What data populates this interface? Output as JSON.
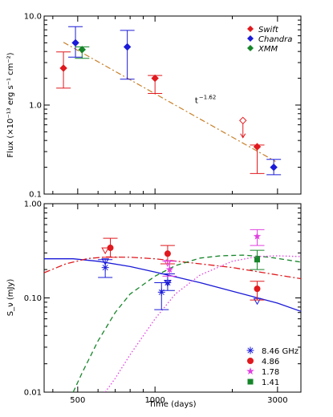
{
  "colors": {
    "swift": "#e0191e",
    "chandra": "#1a1ad8",
    "xmm": "#16852a",
    "fit": "#c8802a",
    "ghz846": "#1a1ad8",
    "ghz486": "#e0191e",
    "ghz178": "#e040e0",
    "ghz141": "#16852a"
  },
  "chart_data": [
    {
      "type": "scatter",
      "ylabel": "Flux (×10⁻¹³ erg s⁻¹ cm⁻²)",
      "xscale": "log",
      "yscale": "log",
      "xlim": [
        370,
        3700
      ],
      "ylim": [
        0.1,
        10
      ],
      "yticks": [
        {
          "v": 0.1,
          "label": "0.1"
        },
        {
          "v": 1,
          "label": "1.0"
        },
        {
          "v": 10,
          "label": "10.0"
        }
      ],
      "annotation": {
        "base": "t",
        "exp": "−1.62",
        "x": 1430,
        "y": 1.05
      },
      "fit": {
        "amp": 4.8,
        "ref": 455,
        "index": -1.62,
        "x_range": [
          440,
          2950
        ]
      },
      "series": [
        {
          "name": "Swift",
          "color_key": "swift",
          "marker": "diamond",
          "points": [
            {
              "x": 440,
              "y": 2.6,
              "ylo": 1.55,
              "yhi": 3.95
            },
            {
              "x": 1000,
              "y": 2.0,
              "ylo": 1.35,
              "yhi": 2.15
            },
            {
              "x": 2500,
              "y": 0.34,
              "ylo": 0.17,
              "yhi": 0.355
            }
          ],
          "upper_limits": [
            {
              "x": 2200,
              "y": 0.67,
              "to": 0.43
            }
          ]
        },
        {
          "name": "Chandra",
          "color_key": "chandra",
          "marker": "diamond",
          "points": [
            {
              "x": 490,
              "y": 5.0,
              "ylo": 3.45,
              "yhi": 7.6
            },
            {
              "x": 780,
              "y": 4.5,
              "ylo": 1.95,
              "yhi": 6.9
            },
            {
              "x": 2900,
              "y": 0.2,
              "ylo": 0.165,
              "yhi": 0.245
            }
          ]
        },
        {
          "name": "XMM",
          "color_key": "xmm",
          "marker": "diamond",
          "points": [
            {
              "x": 520,
              "y": 4.2,
              "ylo": 3.35,
              "yhi": 4.5
            }
          ]
        }
      ],
      "legend_position": "top-right"
    },
    {
      "type": "scatter",
      "ylabel": "S_ν (mJy)",
      "xlabel": "Time (days)",
      "xscale": "log",
      "yscale": "log",
      "xlim": [
        370,
        3700
      ],
      "ylim": [
        0.01,
        1.0
      ],
      "xticks": [
        {
          "v": 500,
          "label": "500"
        },
        {
          "v": 1000,
          "label": "1000"
        },
        {
          "v": 3000,
          "label": "3000"
        }
      ],
      "yticks": [
        {
          "v": 0.01,
          "label": "0.01"
        },
        {
          "v": 0.1,
          "label": "0.10"
        },
        {
          "v": 1,
          "label": "1.00"
        }
      ],
      "series": [
        {
          "name": "8.46 GHz",
          "color_key": "ghz846",
          "marker": "asterisk",
          "points": [
            {
              "x": 640,
              "y": 0.21,
              "ylo": 0.165,
              "yhi": 0.255
            },
            {
              "x": 1060,
              "y": 0.115,
              "ylo": 0.075,
              "yhi": 0.145
            },
            {
              "x": 1120,
              "y": 0.145,
              "ylo": 0.12,
              "yhi": 0.18
            }
          ],
          "upper_limits": [
            {
              "x": 640,
              "y": 0.245
            },
            {
              "x": 1120,
              "y": 0.145
            },
            {
              "x": 2500,
              "y": 0.093
            }
          ]
        },
        {
          "name": "4.86",
          "color_key": "ghz486",
          "marker": "circle",
          "points": [
            {
              "x": 670,
              "y": 0.34,
              "ylo": 0.27,
              "yhi": 0.43
            },
            {
              "x": 1120,
              "y": 0.295,
              "ylo": 0.23,
              "yhi": 0.36
            },
            {
              "x": 2500,
              "y": 0.125,
              "ylo": 0.095,
              "yhi": 0.15
            }
          ],
          "upper_limits": [
            {
              "x": 640,
              "y": 0.32
            }
          ]
        },
        {
          "name": "1.78",
          "color_key": "ghz178",
          "marker": "star",
          "points": [
            {
              "x": 1140,
              "y": 0.2,
              "ylo": 0.17,
              "yhi": 0.245
            },
            {
              "x": 2500,
              "y": 0.45,
              "ylo": 0.36,
              "yhi": 0.53
            }
          ],
          "upper_limits": [
            {
              "x": 1120,
              "y": 0.235
            }
          ]
        },
        {
          "name": "1.41",
          "color_key": "ghz141",
          "marker": "square",
          "points": [
            {
              "x": 2500,
              "y": 0.255,
              "ylo": 0.2,
              "yhi": 0.32
            }
          ]
        }
      ],
      "models": [
        {
          "color_key": "ghz846",
          "dash": "",
          "points": [
            [
              370,
              0.26
            ],
            [
              480,
              0.26
            ],
            [
              600,
              0.245
            ],
            [
              800,
              0.215
            ],
            [
              1000,
              0.188
            ],
            [
              1500,
              0.145
            ],
            [
              2000,
              0.118
            ],
            [
              3000,
              0.088
            ],
            [
              3700,
              0.072
            ]
          ]
        },
        {
          "color_key": "ghz486",
          "dash": "8 3 2 3",
          "points": [
            [
              370,
              0.185
            ],
            [
              450,
              0.23
            ],
            [
              550,
              0.262
            ],
            [
              650,
              0.272
            ],
            [
              800,
              0.27
            ],
            [
              1000,
              0.26
            ],
            [
              1500,
              0.23
            ],
            [
              2000,
              0.21
            ],
            [
              2500,
              0.19
            ],
            [
              3000,
              0.175
            ],
            [
              3700,
              0.16
            ]
          ]
        },
        {
          "color_key": "ghz141",
          "dash": "6 4",
          "points": [
            [
              480,
              0.01
            ],
            [
              520,
              0.016
            ],
            [
              600,
              0.035
            ],
            [
              700,
              0.07
            ],
            [
              800,
              0.11
            ],
            [
              1000,
              0.17
            ],
            [
              1200,
              0.22
            ],
            [
              1500,
              0.265
            ],
            [
              1800,
              0.28
            ],
            [
              2200,
              0.285
            ],
            [
              2800,
              0.27
            ],
            [
              3700,
              0.24
            ]
          ]
        },
        {
          "color_key": "ghz178",
          "dash": "1.5 2.5",
          "points": [
            [
              640,
              0.01
            ],
            [
              700,
              0.014
            ],
            [
              800,
              0.025
            ],
            [
              1000,
              0.06
            ],
            [
              1200,
              0.11
            ],
            [
              1500,
              0.175
            ],
            [
              2000,
              0.245
            ],
            [
              2500,
              0.275
            ],
            [
              3000,
              0.28
            ],
            [
              3700,
              0.275
            ]
          ]
        }
      ],
      "legend_position": "bottom-right"
    }
  ]
}
